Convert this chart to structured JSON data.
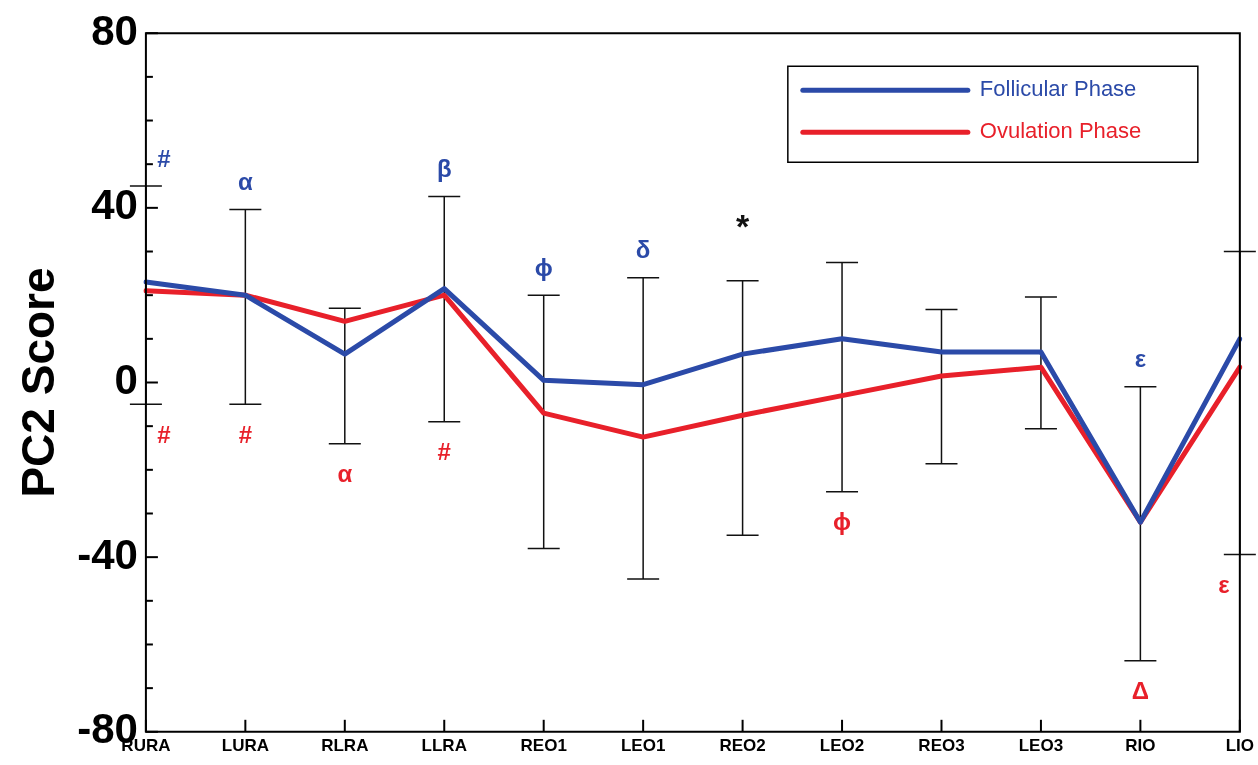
{
  "chart_data": {
    "type": "line",
    "ylabel": "PC2 Score",
    "categories": [
      "RURA",
      "LURA",
      "RLRA",
      "LLRA",
      "REO1",
      "LEO1",
      "REO2",
      "LEO2",
      "REO3",
      "LEO3",
      "RIO",
      "LIO"
    ],
    "series": [
      {
        "name": "Follicular Phase",
        "color": "#2b4aa8",
        "values": [
          23,
          20,
          6.5,
          21.5,
          0.5,
          -0.5,
          6.5,
          10,
          7,
          7,
          -32,
          10
        ],
        "errors": [
          [
            -5,
            45
          ],
          [
            -5,
            39.6
          ],
          [
            -14,
            17
          ],
          [
            -9,
            42.6
          ],
          [
            -38,
            20
          ],
          [
            -45,
            24
          ],
          [
            -35,
            23.3
          ],
          [
            -25,
            27.5
          ],
          [
            -18.6,
            16.7
          ],
          [
            -10.6,
            19.6
          ],
          [
            -63.7,
            -1
          ],
          [
            -39.4,
            30
          ]
        ]
      },
      {
        "name": "Ovulation Phase",
        "color": "#e8202a",
        "values": [
          21,
          20,
          14,
          20,
          -7,
          -12.5,
          -7.5,
          -3,
          1.5,
          3.5,
          -32,
          3.5
        ]
      }
    ],
    "ylim": [
      -80,
      80
    ],
    "yticks": [
      -80,
      {
        "value": -70,
        "label": null
      },
      {
        "value": -60,
        "label": null
      },
      {
        "value": -50,
        "label": null
      },
      -40,
      {
        "value": -30,
        "label": null
      },
      {
        "value": -20,
        "label": null
      },
      {
        "value": -10,
        "label": null
      },
      0,
      {
        "value": 10,
        "label": null
      },
      {
        "value": 20,
        "label": null
      },
      {
        "value": 30,
        "label": null
      },
      40,
      {
        "value": 50,
        "label": null
      },
      {
        "value": 60,
        "label": null
      },
      {
        "value": 70,
        "label": null
      },
      80
    ],
    "grid": false,
    "legend": "top right",
    "marker": "none",
    "line_style": "solid",
    "annotations": [
      "*",
      {
        "text": "#",
        "x": "RURA",
        "y": 45
      },
      {
        "text": "α",
        "x": "LURA",
        "y": 39.6
      },
      {
        "text": "β",
        "x": "LLRA",
        "y": 42.6
      },
      {
        "text": "ϕ",
        "x": "REO1",
        "y": 20
      },
      {
        "text": "δ",
        "x": "LEO1",
        "y": 24
      },
      {
        "text": "ε",
        "x": "RIO",
        "y": -1
      },
      {
        "text": "#",
        "x": "RURA",
        "y": -5
      },
      {
        "text": "#",
        "x": "LURA",
        "y": -5
      },
      {
        "text": "α",
        "x": "RLRA",
        "y": -14
      },
      {
        "text": "#",
        "x": "LLRA",
        "y": -9
      },
      {
        "text": "ϕ",
        "x": "LEO2",
        "y": -25
      },
      {
        "text": "Δ",
        "x": "RIO",
        "y": -63.7
      },
      {
        "text": "ε",
        "x": "LIO",
        "y": -39.4
      }
    ]
  }
}
